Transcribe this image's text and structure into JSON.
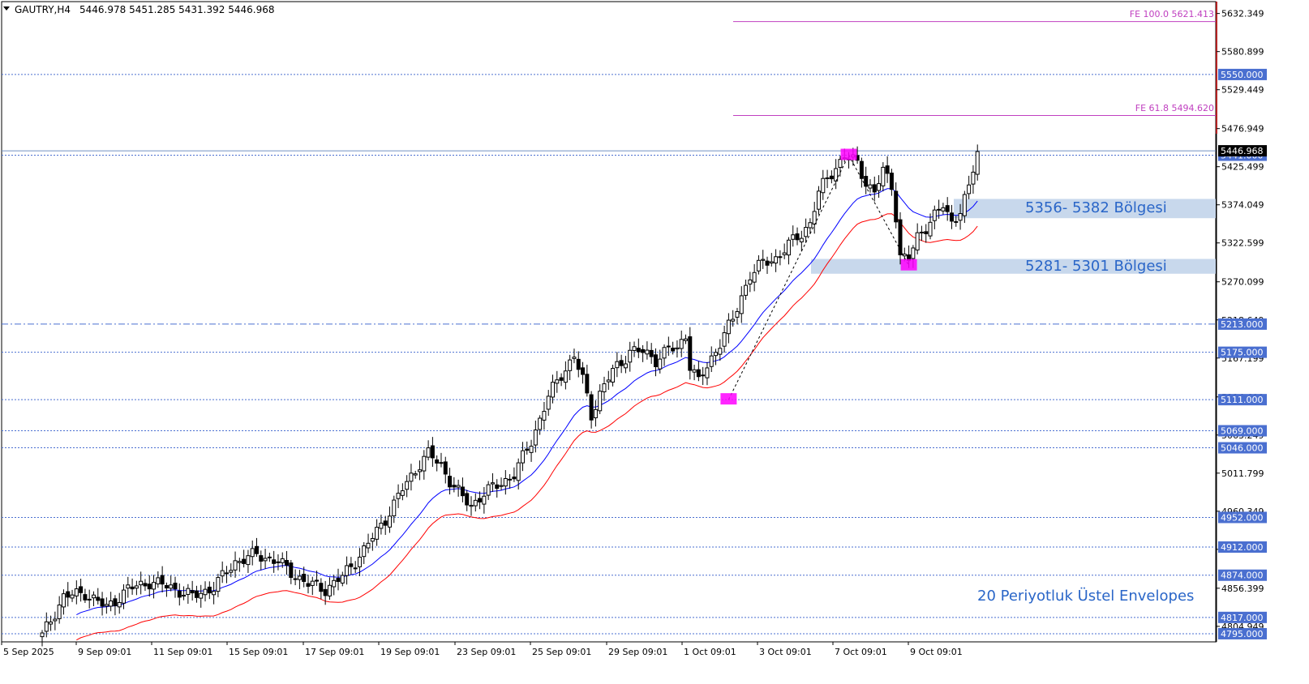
{
  "header": {
    "symbol": "GAUTRY,H4",
    "ohlc": "5446.978 5451.285 5431.392 5446.968"
  },
  "chart_data": {
    "type": "candlestick",
    "symbol": "GAUTRY",
    "timeframe": "H4",
    "ylim": [
      4784,
      5644
    ],
    "price_ticks": [
      5632.349,
      5580.899,
      5529.449,
      5476.949,
      5425.499,
      5374.049,
      5322.599,
      5270.099,
      5218.649,
      5167.199,
      5114.699,
      5063.249,
      5011.799,
      4960.349,
      4908.899,
      4856.399,
      4804.949
    ],
    "time_labels": [
      "5 Sep 2025",
      "9 Sep 09:01",
      "11 Sep 09:01",
      "15 Sep 09:01",
      "17 Sep 09:01",
      "19 Sep 09:01",
      "23 Sep 09:01",
      "25 Sep 09:01",
      "29 Sep 09:01",
      "1 Oct 09:01",
      "3 Oct 09:01",
      "7 Oct 09:01",
      "9 Oct 09:01"
    ],
    "levels": [
      {
        "value": 5550.0,
        "label": "5550.000",
        "style": "dotted"
      },
      {
        "value": 5441.0,
        "label": "5441.000",
        "style": "dotted"
      },
      {
        "value": 5213.0,
        "label": "5213.000",
        "style": "dashdot"
      },
      {
        "value": 5175.0,
        "label": "5175.000",
        "style": "dotted"
      },
      {
        "value": 5111.0,
        "label": "5111.000",
        "style": "dotted"
      },
      {
        "value": 5069.0,
        "label": "5069.000",
        "style": "dotted"
      },
      {
        "value": 5046.0,
        "label": "5046.000",
        "style": "dotted"
      },
      {
        "value": 4952.0,
        "label": "4952.000",
        "style": "dotted"
      },
      {
        "value": 4912.0,
        "label": "4912.000",
        "style": "dotted"
      },
      {
        "value": 4874.0,
        "label": "4874.000",
        "style": "dotted"
      },
      {
        "value": 4817.0,
        "label": "4817.000",
        "style": "dotted"
      },
      {
        "value": 4795.0,
        "label": "4795.000",
        "style": "dotted"
      }
    ],
    "current_price": {
      "value": 5446.968,
      "label": "5446.968"
    },
    "fibo": [
      {
        "label": "FE 100.0 5621.413",
        "value": 5621.413
      },
      {
        "label": "FE 61.8 5494.620",
        "value": 5494.62
      }
    ],
    "zones": [
      {
        "label": "5356- 5382 Bölgesi",
        "low": 5356,
        "high": 5382
      },
      {
        "label": "5281- 5301 Bölgesi",
        "low": 5281,
        "high": 5301
      }
    ],
    "annotation": "20 Periyotluk Üstel Envelopes",
    "colors": {
      "candle": "#000000",
      "upper_envelope": "#0000ff",
      "lower_envelope": "#ff0000",
      "level": "#4a6fd0",
      "fibo": "#c040c0",
      "zone": "#c8d8ec",
      "marker": "#ff00ff",
      "current_axis": "#b22222"
    }
  }
}
